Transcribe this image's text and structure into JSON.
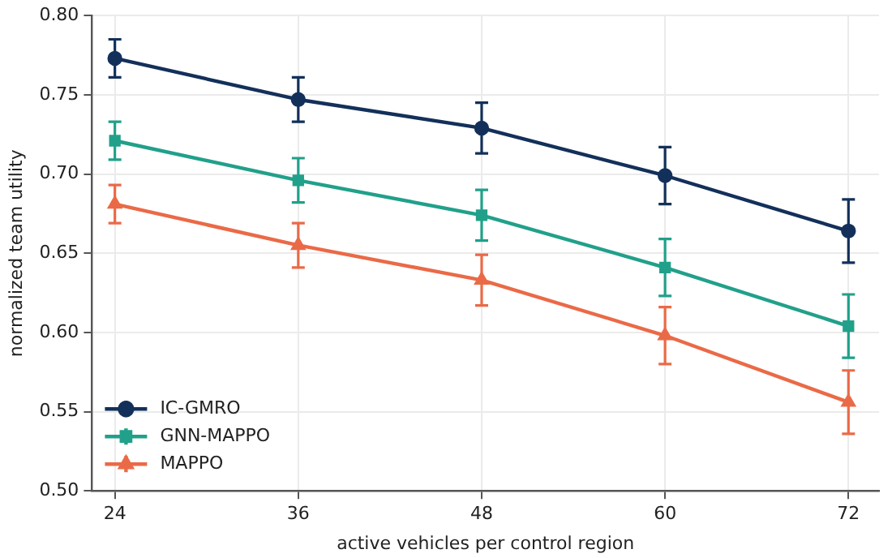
{
  "chart_data": {
    "type": "line",
    "xlabel": "active vehicles per control region",
    "ylabel": "normalized team utility",
    "x": [
      24,
      36,
      48,
      60,
      72
    ],
    "xlim": [
      22.5,
      74
    ],
    "xticks": [
      24,
      36,
      48,
      60,
      72
    ],
    "ylim": [
      0.5,
      0.8
    ],
    "yticks": [
      {
        "value": 0.5,
        "label": "0.50"
      },
      0.55,
      {
        "value": 0.6,
        "label": "0.60"
      },
      0.65,
      {
        "value": 0.7,
        "label": "0.70"
      },
      0.75,
      {
        "value": 0.8,
        "label": "0.80"
      }
    ],
    "grid": true,
    "legend": "bottom left",
    "line_style": "solid",
    "series": [
      {
        "name": "IC-GMRO",
        "color": "#13305a",
        "marker": "circle",
        "values": [
          0.773,
          0.747,
          0.729,
          0.699,
          0.664
        ],
        "errors": [
          0.012,
          0.014,
          0.016,
          0.018,
          0.02
        ]
      },
      {
        "name": "GNN-MAPPO",
        "color": "#21a08a",
        "marker": "square",
        "values": [
          0.721,
          0.696,
          0.674,
          0.641,
          0.604
        ],
        "errors": [
          0.012,
          0.014,
          0.016,
          0.018,
          0.02
        ]
      },
      {
        "name": "MAPPO",
        "color": "#ea6a47",
        "marker": "triangle",
        "values": [
          0.681,
          0.655,
          0.633,
          0.598,
          0.556
        ],
        "errors": [
          0.012,
          0.014,
          0.016,
          0.018,
          0.02
        ]
      }
    ]
  }
}
